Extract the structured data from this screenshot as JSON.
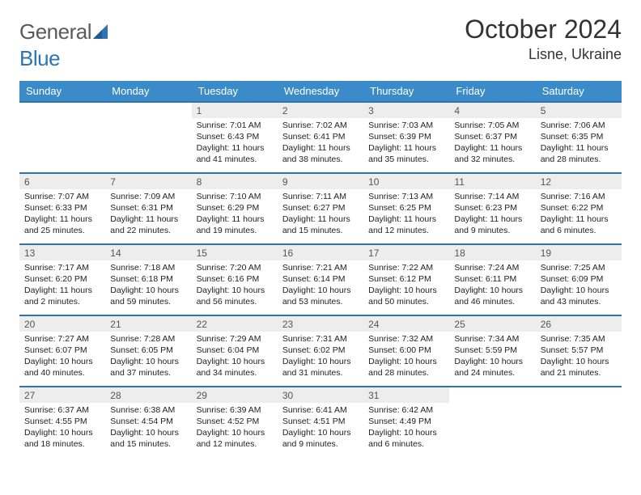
{
  "brand": {
    "part1": "General",
    "part2": "Blue"
  },
  "title": "October 2024",
  "location": "Lisne, Ukraine",
  "colors": {
    "header_bg": "#3b8bc9",
    "border": "#2e74b5",
    "daynum_bg": "#ededed"
  },
  "weekdays": [
    "Sunday",
    "Monday",
    "Tuesday",
    "Wednesday",
    "Thursday",
    "Friday",
    "Saturday"
  ],
  "weeks": [
    [
      {
        "empty": true
      },
      {
        "empty": true
      },
      {
        "n": "1",
        "sr": "7:01 AM",
        "ss": "6:43 PM",
        "dl": "11 hours and 41 minutes."
      },
      {
        "n": "2",
        "sr": "7:02 AM",
        "ss": "6:41 PM",
        "dl": "11 hours and 38 minutes."
      },
      {
        "n": "3",
        "sr": "7:03 AM",
        "ss": "6:39 PM",
        "dl": "11 hours and 35 minutes."
      },
      {
        "n": "4",
        "sr": "7:05 AM",
        "ss": "6:37 PM",
        "dl": "11 hours and 32 minutes."
      },
      {
        "n": "5",
        "sr": "7:06 AM",
        "ss": "6:35 PM",
        "dl": "11 hours and 28 minutes."
      }
    ],
    [
      {
        "n": "6",
        "sr": "7:07 AM",
        "ss": "6:33 PM",
        "dl": "11 hours and 25 minutes."
      },
      {
        "n": "7",
        "sr": "7:09 AM",
        "ss": "6:31 PM",
        "dl": "11 hours and 22 minutes."
      },
      {
        "n": "8",
        "sr": "7:10 AM",
        "ss": "6:29 PM",
        "dl": "11 hours and 19 minutes."
      },
      {
        "n": "9",
        "sr": "7:11 AM",
        "ss": "6:27 PM",
        "dl": "11 hours and 15 minutes."
      },
      {
        "n": "10",
        "sr": "7:13 AM",
        "ss": "6:25 PM",
        "dl": "11 hours and 12 minutes."
      },
      {
        "n": "11",
        "sr": "7:14 AM",
        "ss": "6:23 PM",
        "dl": "11 hours and 9 minutes."
      },
      {
        "n": "12",
        "sr": "7:16 AM",
        "ss": "6:22 PM",
        "dl": "11 hours and 6 minutes."
      }
    ],
    [
      {
        "n": "13",
        "sr": "7:17 AM",
        "ss": "6:20 PM",
        "dl": "11 hours and 2 minutes."
      },
      {
        "n": "14",
        "sr": "7:18 AM",
        "ss": "6:18 PM",
        "dl": "10 hours and 59 minutes."
      },
      {
        "n": "15",
        "sr": "7:20 AM",
        "ss": "6:16 PM",
        "dl": "10 hours and 56 minutes."
      },
      {
        "n": "16",
        "sr": "7:21 AM",
        "ss": "6:14 PM",
        "dl": "10 hours and 53 minutes."
      },
      {
        "n": "17",
        "sr": "7:22 AM",
        "ss": "6:12 PM",
        "dl": "10 hours and 50 minutes."
      },
      {
        "n": "18",
        "sr": "7:24 AM",
        "ss": "6:11 PM",
        "dl": "10 hours and 46 minutes."
      },
      {
        "n": "19",
        "sr": "7:25 AM",
        "ss": "6:09 PM",
        "dl": "10 hours and 43 minutes."
      }
    ],
    [
      {
        "n": "20",
        "sr": "7:27 AM",
        "ss": "6:07 PM",
        "dl": "10 hours and 40 minutes."
      },
      {
        "n": "21",
        "sr": "7:28 AM",
        "ss": "6:05 PM",
        "dl": "10 hours and 37 minutes."
      },
      {
        "n": "22",
        "sr": "7:29 AM",
        "ss": "6:04 PM",
        "dl": "10 hours and 34 minutes."
      },
      {
        "n": "23",
        "sr": "7:31 AM",
        "ss": "6:02 PM",
        "dl": "10 hours and 31 minutes."
      },
      {
        "n": "24",
        "sr": "7:32 AM",
        "ss": "6:00 PM",
        "dl": "10 hours and 28 minutes."
      },
      {
        "n": "25",
        "sr": "7:34 AM",
        "ss": "5:59 PM",
        "dl": "10 hours and 24 minutes."
      },
      {
        "n": "26",
        "sr": "7:35 AM",
        "ss": "5:57 PM",
        "dl": "10 hours and 21 minutes."
      }
    ],
    [
      {
        "n": "27",
        "sr": "6:37 AM",
        "ss": "4:55 PM",
        "dl": "10 hours and 18 minutes."
      },
      {
        "n": "28",
        "sr": "6:38 AM",
        "ss": "4:54 PM",
        "dl": "10 hours and 15 minutes."
      },
      {
        "n": "29",
        "sr": "6:39 AM",
        "ss": "4:52 PM",
        "dl": "10 hours and 12 minutes."
      },
      {
        "n": "30",
        "sr": "6:41 AM",
        "ss": "4:51 PM",
        "dl": "10 hours and 9 minutes."
      },
      {
        "n": "31",
        "sr": "6:42 AM",
        "ss": "4:49 PM",
        "dl": "10 hours and 6 minutes."
      },
      {
        "empty": true
      },
      {
        "empty": true
      }
    ]
  ],
  "labels": {
    "sunrise": "Sunrise:",
    "sunset": "Sunset:",
    "daylight": "Daylight:"
  }
}
